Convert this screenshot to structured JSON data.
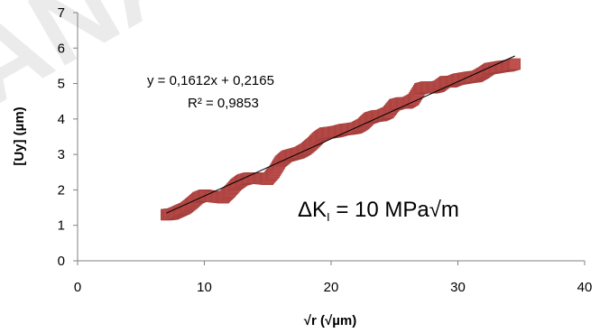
{
  "chart_data": {
    "type": "scatter",
    "xlabel": "√r (√µm)",
    "ylabel": "[Uy] (µm)",
    "xlim": [
      0,
      40
    ],
    "ylim": [
      0,
      7
    ],
    "x_ticks": [
      "0",
      "10",
      "20",
      "30",
      "40"
    ],
    "y_ticks": [
      "0",
      "1",
      "2",
      "3",
      "4",
      "5",
      "6",
      "7"
    ],
    "grid": false,
    "legend": "none",
    "marker_color": "#c0504d",
    "trendline_color": "#000000",
    "trendline": {
      "slope": 0.1612,
      "intercept": 0.2165,
      "x_range": [
        7.0,
        34.5
      ]
    },
    "equation": "y = 0,1612x + 0,2165",
    "r_squared": "R² = 0,9853",
    "annotation": {
      "prefix": "ΔK",
      "subscript": "I",
      "suffix": " = 10 MPa√m"
    },
    "points": [
      [
        7.0,
        1.3
      ],
      [
        7.5,
        1.32
      ],
      [
        8.0,
        1.4
      ],
      [
        8.5,
        1.48
      ],
      [
        9.0,
        1.62
      ],
      [
        9.5,
        1.78
      ],
      [
        10.0,
        1.85
      ],
      [
        10.5,
        1.82
      ],
      [
        11.0,
        1.8
      ],
      [
        11.5,
        1.78
      ],
      [
        12.0,
        1.95
      ],
      [
        12.5,
        2.15
      ],
      [
        13.0,
        2.28
      ],
      [
        13.5,
        2.33
      ],
      [
        14.0,
        2.33
      ],
      [
        14.5,
        2.32
      ],
      [
        15.0,
        2.3
      ],
      [
        15.5,
        2.5
      ],
      [
        16.0,
        2.8
      ],
      [
        16.5,
        2.95
      ],
      [
        17.0,
        3.0
      ],
      [
        17.5,
        3.05
      ],
      [
        18.0,
        3.15
      ],
      [
        18.5,
        3.3
      ],
      [
        19.0,
        3.48
      ],
      [
        19.5,
        3.6
      ],
      [
        20.0,
        3.62
      ],
      [
        20.5,
        3.65
      ],
      [
        21.0,
        3.7
      ],
      [
        21.5,
        3.72
      ],
      [
        22.0,
        3.75
      ],
      [
        22.5,
        3.85
      ],
      [
        23.0,
        4.02
      ],
      [
        23.5,
        4.08
      ],
      [
        24.0,
        4.1
      ],
      [
        24.5,
        4.18
      ],
      [
        25.0,
        4.4
      ],
      [
        25.5,
        4.45
      ],
      [
        26.0,
        4.45
      ],
      [
        26.5,
        4.55
      ],
      [
        27.0,
        4.85
      ],
      [
        27.5,
        4.9
      ],
      [
        28.0,
        4.88
      ],
      [
        28.5,
        4.92
      ],
      [
        29.0,
        5.05
      ],
      [
        29.5,
        5.05
      ],
      [
        30.0,
        5.12
      ],
      [
        30.5,
        5.15
      ],
      [
        31.0,
        5.18
      ],
      [
        31.5,
        5.2
      ],
      [
        32.0,
        5.3
      ],
      [
        32.5,
        5.42
      ],
      [
        33.0,
        5.45
      ],
      [
        33.5,
        5.48
      ],
      [
        34.0,
        5.5
      ],
      [
        34.5,
        5.55
      ]
    ]
  },
  "watermark": "ANAC"
}
